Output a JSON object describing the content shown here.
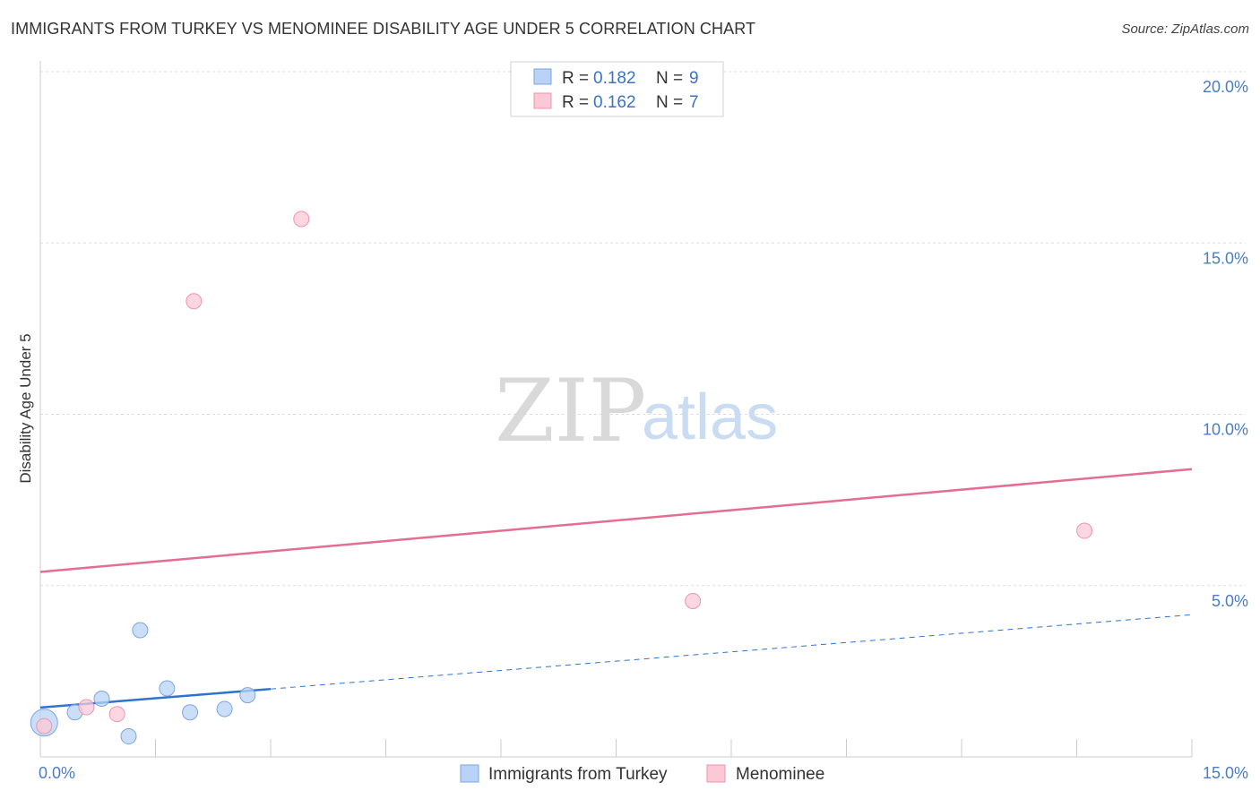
{
  "title": "IMMIGRANTS FROM TURKEY VS MENOMINEE DISABILITY AGE UNDER 5 CORRELATION CHART",
  "source": "Source: ZipAtlas.com",
  "watermark": {
    "zip": "ZIP",
    "atlas": "atlas"
  },
  "legend": {
    "rows": [
      {
        "r_label": "R = ",
        "r_value": "0.182",
        "n_label": "N = ",
        "n_value": "9",
        "color": "#b8d3f5",
        "stroke": "#7ea6de"
      },
      {
        "r_label": "R = ",
        "r_value": "0.162",
        "n_label": "N = ",
        "n_value": "7",
        "color": "#fbc8d6",
        "stroke": "#ec95b0"
      }
    ]
  },
  "chart_data": {
    "type": "scatter",
    "title": "IMMIGRANTS FROM TURKEY VS MENOMINEE DISABILITY AGE UNDER 5 CORRELATION CHART",
    "xlabel": "",
    "ylabel": "Disability Age Under 5",
    "xlim": [
      0,
      15
    ],
    "ylim": [
      0,
      20
    ],
    "x_ticks": [
      {
        "value": 0,
        "label": "0.0%"
      },
      {
        "value": 15,
        "label": "15.0%"
      }
    ],
    "y_ticks": [
      {
        "value": 5,
        "label": "5.0%"
      },
      {
        "value": 10,
        "label": "10.0%"
      },
      {
        "value": 15,
        "label": "15.0%"
      },
      {
        "value": 20,
        "label": "20.0%"
      }
    ],
    "series": [
      {
        "name": "Immigrants from Turkey",
        "color": "#b8d3f5",
        "stroke": "#7ea6de",
        "line_color": "#2f73d0",
        "points": [
          {
            "x": 0.05,
            "y": 1.0,
            "size": "large"
          },
          {
            "x": 0.45,
            "y": 1.3,
            "size": "normal"
          },
          {
            "x": 0.8,
            "y": 1.7,
            "size": "normal"
          },
          {
            "x": 1.15,
            "y": 0.6,
            "size": "normal"
          },
          {
            "x": 1.3,
            "y": 3.7,
            "size": "normal"
          },
          {
            "x": 1.65,
            "y": 2.0,
            "size": "normal"
          },
          {
            "x": 1.95,
            "y": 1.3,
            "size": "normal"
          },
          {
            "x": 2.4,
            "y": 1.4,
            "size": "normal"
          },
          {
            "x": 2.7,
            "y": 1.8,
            "size": "normal"
          }
        ],
        "trend": {
          "x0": 0,
          "y0": 1.44,
          "x1": 15,
          "y1": 4.15,
          "solid_until": 3.0
        }
      },
      {
        "name": "Menominee",
        "color": "#fbc8d6",
        "stroke": "#ec95b0",
        "line_color": "#e46e92",
        "points": [
          {
            "x": 0.05,
            "y": 0.9,
            "size": "normal"
          },
          {
            "x": 0.6,
            "y": 1.45,
            "size": "normal"
          },
          {
            "x": 1.0,
            "y": 1.25,
            "size": "normal"
          },
          {
            "x": 2.0,
            "y": 13.3,
            "size": "normal"
          },
          {
            "x": 3.4,
            "y": 15.7,
            "size": "normal"
          },
          {
            "x": 8.5,
            "y": 4.55,
            "size": "normal"
          },
          {
            "x": 13.6,
            "y": 6.6,
            "size": "normal"
          }
        ],
        "trend": {
          "x0": 0,
          "y0": 5.4,
          "x1": 15,
          "y1": 8.4,
          "solid_until": 15
        }
      }
    ]
  }
}
